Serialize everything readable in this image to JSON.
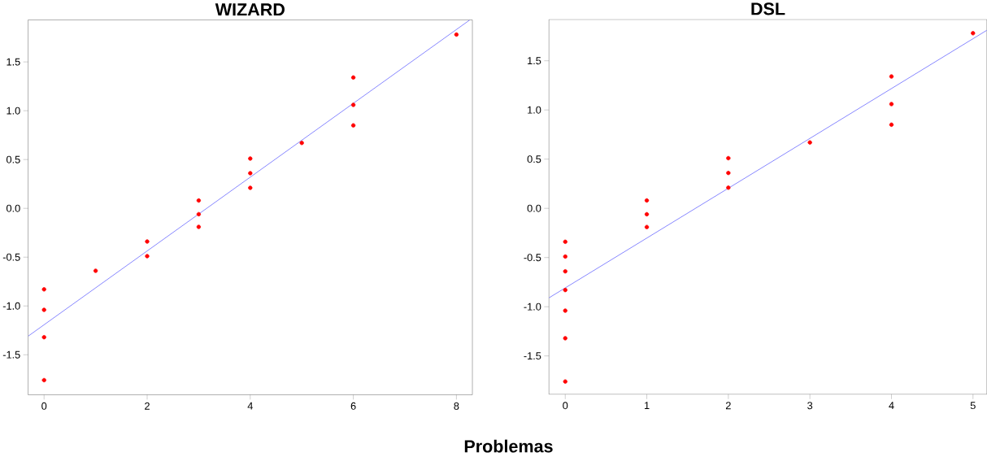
{
  "chart_data": [
    {
      "type": "scatter",
      "title": "WIZARD",
      "xlabel": "Problemas",
      "xlim": [
        -0.31,
        8.31
      ],
      "ylim": [
        -1.91,
        1.93
      ],
      "xticks": [
        0,
        2,
        4,
        6,
        8
      ],
      "yticks": [
        {
          "value": -1.5,
          "label": "-1.5"
        },
        {
          "value": -1.0,
          "label": "-1.0"
        },
        {
          "value": -0.5,
          "label": "-0.5"
        },
        {
          "value": 0.0,
          "label": "0.0"
        },
        {
          "value": 0.5,
          "label": "0.5"
        },
        {
          "value": 1.0,
          "label": "1.0"
        },
        {
          "value": 1.5,
          "label": "1.5"
        }
      ],
      "series": [
        {
          "type": "scatter",
          "marker": "circle",
          "color": "#ff0000",
          "x": [
            0,
            0,
            0,
            0,
            1,
            2,
            2,
            3,
            3,
            3,
            4,
            4,
            4,
            5,
            6,
            6,
            6,
            8
          ],
          "values": [
            -0.83,
            -1.04,
            -1.32,
            -1.76,
            -0.64,
            -0.34,
            -0.49,
            0.08,
            -0.06,
            -0.19,
            0.51,
            0.36,
            0.21,
            0.67,
            1.34,
            1.06,
            0.85,
            1.78
          ]
        },
        {
          "type": "line",
          "marker": "none",
          "color": "#6666ff",
          "x": [
            -0.31,
            8.26
          ],
          "values": [
            -1.31,
            1.93
          ]
        }
      ]
    },
    {
      "type": "scatter",
      "title": "DSL",
      "xlim": [
        -0.2,
        5.17
      ],
      "ylim": [
        -1.89,
        1.92
      ],
      "xticks": [
        0,
        1,
        2,
        3,
        4,
        5
      ],
      "yticks": [
        {
          "value": -1.5,
          "label": "-1.5"
        },
        {
          "value": -1.0,
          "label": "-1.0"
        },
        {
          "value": -0.5,
          "label": "-0.5"
        },
        {
          "value": 0.0,
          "label": "0.0"
        },
        {
          "value": 0.5,
          "label": "0.5"
        },
        {
          "value": 1.0,
          "label": "1.0"
        },
        {
          "value": 1.5,
          "label": "1.5"
        }
      ],
      "series": [
        {
          "type": "scatter",
          "marker": "circle",
          "color": "#ff0000",
          "x": [
            0,
            0,
            0,
            0,
            0,
            0,
            0,
            1,
            1,
            1,
            2,
            2,
            2,
            3,
            4,
            4,
            4,
            5
          ],
          "values": [
            -0.34,
            -0.49,
            -0.64,
            -0.83,
            -1.04,
            -1.32,
            -1.76,
            0.08,
            -0.06,
            -0.19,
            0.51,
            0.36,
            0.21,
            0.67,
            1.34,
            1.06,
            0.85,
            1.78
          ]
        },
        {
          "type": "line",
          "marker": "none",
          "color": "#6666ff",
          "x": [
            -0.2,
            5.17
          ],
          "values": [
            -0.91,
            1.81
          ]
        }
      ]
    }
  ]
}
